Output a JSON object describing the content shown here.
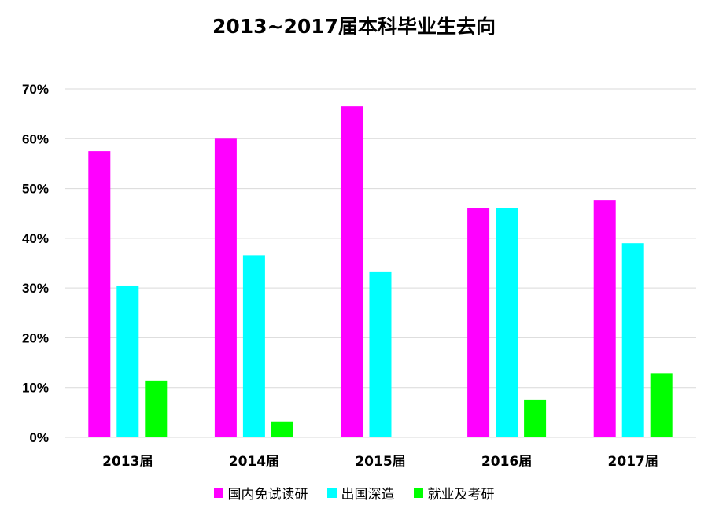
{
  "chart_data": {
    "type": "bar",
    "title": "2013~2017届本科毕业生去向",
    "categories": [
      "2013届",
      "2014届",
      "2015届",
      "2016届",
      "2017届"
    ],
    "series": [
      {
        "name": "国内免试读研",
        "color": "#ff00ff",
        "values": [
          57.5,
          60.0,
          66.5,
          46.0,
          47.7
        ]
      },
      {
        "name": "出国深造",
        "color": "#00ffff",
        "values": [
          30.5,
          36.6,
          33.2,
          46.0,
          39.0
        ]
      },
      {
        "name": "就业及考研",
        "color": "#00ff00",
        "values": [
          11.4,
          3.2,
          0,
          7.6,
          12.9
        ]
      }
    ],
    "ylim": [
      0,
      70
    ],
    "yticks": [
      "0%",
      "10%",
      "20%",
      "30%",
      "40%",
      "50%",
      "60%",
      "70%"
    ],
    "grid": true,
    "legend": "bottom"
  }
}
